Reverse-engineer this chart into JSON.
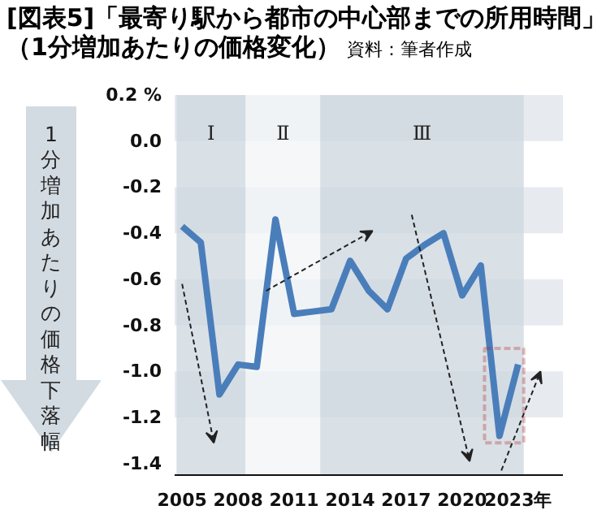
{
  "chart_data": {
    "type": "line",
    "title": "[図表5]「最寄り駅から都市の中心部までの所用時間」",
    "subtitle": "（1分増加あたりの価格変化）",
    "annotations": [
      "資料：筆者作成"
    ],
    "ylabel": "1分増加あたりの価格下落幅",
    "x": [
      2005,
      2006,
      2007,
      2008,
      2009,
      2010,
      2011,
      2012,
      2013,
      2014,
      2015,
      2016,
      2017,
      2018,
      2019,
      2020,
      2021,
      2022,
      2023
    ],
    "series": [
      {
        "color": "#4a7ebb",
        "values": [
          -0.37,
          -0.44,
          -1.1,
          -0.97,
          -0.98,
          -0.34,
          -0.75,
          -0.74,
          -0.73,
          -0.52,
          -0.65,
          -0.73,
          -0.51,
          -0.45,
          -0.4,
          -0.67,
          -0.54,
          -1.28,
          -0.97
        ]
      }
    ],
    "xlim": [
      2004.6,
      2025.4
    ],
    "xticks": [
      2005,
      2008,
      2011,
      2014,
      2017,
      2020,
      {
        "value": 2023,
        "label": "2023年"
      }
    ],
    "ylim": [
      -1.45,
      0.2
    ],
    "yticks": [
      {
        "value": 0.2,
        "label": "0.2 %"
      },
      {
        "value": 0,
        "label": "0.0"
      },
      -0.2,
      -0.4,
      -0.6,
      -0.8,
      {
        "value": -1.0,
        "label": "-1.0"
      },
      -1.2,
      -1.4
    ],
    "bands": [
      {
        "axis": "x",
        "from": 2004.7,
        "to": 2008.4,
        "label": "Ⅰ",
        "color": "#cfd8e0"
      },
      {
        "axis": "x",
        "from": 2008.4,
        "to": 2012.4,
        "label": "Ⅱ",
        "color": "#f3f5f7"
      },
      {
        "axis": "x",
        "from": 2012.4,
        "to": 2023.3,
        "label": "Ⅲ",
        "color": "#cfd8e0"
      },
      {
        "axis": "y",
        "from": 0,
        "to": 0.2,
        "color": "#dde3e9"
      },
      {
        "axis": "y",
        "from": -0.4,
        "to": -0.2,
        "color": "#dde3e9"
      },
      {
        "axis": "y",
        "from": -0.8,
        "to": -0.6,
        "color": "#dde3e9"
      },
      {
        "axis": "y",
        "from": -1.2,
        "to": -1.0,
        "color": "#dde3e9"
      }
    ],
    "line_style": "solid",
    "marker": "none"
  }
}
